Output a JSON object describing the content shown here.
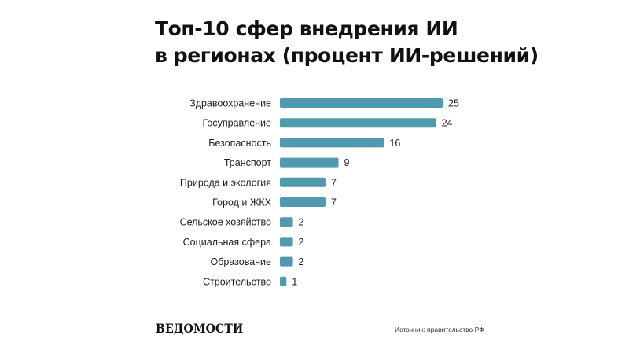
{
  "title": {
    "line1": "Топ-10 сфер внедрения ИИ",
    "line2": "в регионах (процент ИИ-решений)"
  },
  "logo_text": "ВЕДОМОСТИ",
  "source": "Источник: правительство РФ",
  "colors": {
    "bar": "#4f9aae",
    "text": "#1f1f1f"
  },
  "chart_data": {
    "type": "bar",
    "orientation": "horizontal",
    "categories": [
      "Здравоохранение",
      "Госуправление",
      "Безопасность",
      "Транспорт",
      "Природа и экология",
      "Город и ЖКХ",
      "Сельское хозяйство",
      "Социальная сфера",
      "Образование",
      "Строительство"
    ],
    "values": [
      25,
      24,
      16,
      9,
      7,
      7,
      2,
      2,
      2,
      1
    ],
    "data_labels": true,
    "xlim": [
      0,
      25
    ],
    "grid": false,
    "legend": "none"
  }
}
